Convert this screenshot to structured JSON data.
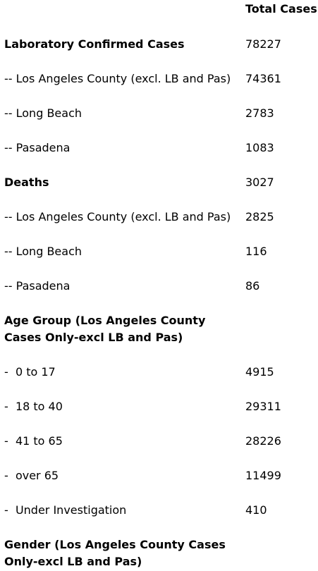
{
  "header": {
    "column_title": "Total Cases"
  },
  "rows": [
    {
      "label": "Laboratory Confirmed Cases",
      "value": "78227"
    },
    {
      "label": "-- Los Angeles County (excl. LB and Pas)",
      "value": "74361"
    },
    {
      "label": "-- Long Beach",
      "value": "2783"
    },
    {
      "label": "-- Pasadena",
      "value": "1083"
    },
    {
      "label": "Deaths",
      "value": "3027"
    },
    {
      "label": "-- Los Angeles County (excl. LB and Pas)",
      "value": "2825"
    },
    {
      "label": "-- Long Beach",
      "value": "116"
    },
    {
      "label": "-- Pasadena",
      "value": "86"
    },
    {
      "label": "Age Group (Los Angeles County Cases Only-excl LB and Pas)"
    },
    {
      "label": "-  0 to 17",
      "value": "4915"
    },
    {
      "label": "-  18 to 40",
      "value": "29311"
    },
    {
      "label": "-  41 to 65",
      "value": "28226"
    },
    {
      "label": "-  over 65",
      "value": "11499"
    },
    {
      "label": "-  Under Investigation",
      "value": "410"
    },
    {
      "label": "Gender (Los Angeles County Cases Only-excl LB and Pas)"
    }
  ]
}
